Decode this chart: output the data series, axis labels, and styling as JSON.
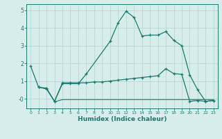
{
  "xlabel": "Humidex (Indice chaleur)",
  "xlim": [
    -0.5,
    23.5
  ],
  "ylim": [
    -0.55,
    5.35
  ],
  "yticks": [
    0,
    1,
    2,
    3,
    4,
    5
  ],
  "ytick_labels": [
    "-0",
    "1",
    "2",
    "3",
    "4",
    "5"
  ],
  "xticks": [
    0,
    1,
    2,
    3,
    4,
    5,
    6,
    7,
    8,
    9,
    10,
    11,
    12,
    13,
    14,
    15,
    16,
    17,
    18,
    19,
    20,
    21,
    22,
    23
  ],
  "bg_color": "#d6edec",
  "grid_color": "#b8d8d4",
  "line_color": "#1a7a6e",
  "line1_x": [
    0,
    1,
    2,
    3,
    4,
    5,
    6,
    7,
    10,
    11,
    12,
    13,
    14,
    15,
    16,
    17,
    18,
    19,
    20,
    21,
    22,
    23
  ],
  "line1_y": [
    1.85,
    0.65,
    0.6,
    -0.15,
    0.85,
    0.85,
    0.85,
    1.4,
    3.25,
    4.3,
    4.95,
    4.6,
    3.55,
    3.6,
    3.6,
    3.8,
    3.3,
    3.0,
    1.35,
    0.5,
    -0.15,
    -0.1
  ],
  "line2_x": [
    1,
    2,
    3,
    4,
    5,
    6,
    7,
    8,
    9,
    10,
    11,
    12,
    13,
    14,
    15,
    16,
    17,
    18,
    19,
    20,
    21,
    22,
    23
  ],
  "line2_y": [
    0.65,
    0.55,
    -0.15,
    0.9,
    0.9,
    0.9,
    0.9,
    0.95,
    0.95,
    1.0,
    1.05,
    1.1,
    1.15,
    1.2,
    1.25,
    1.3,
    1.7,
    1.42,
    1.38,
    -0.15,
    -0.1,
    -0.15,
    -0.1
  ],
  "line3_x": [
    3,
    4,
    5,
    6,
    7,
    8,
    9,
    10,
    11,
    12,
    13,
    14,
    15,
    16,
    17,
    18,
    19,
    20,
    21,
    22,
    23
  ],
  "line3_y": [
    -0.18,
    -0.05,
    -0.05,
    -0.05,
    -0.05,
    -0.05,
    -0.05,
    -0.05,
    -0.05,
    -0.05,
    -0.05,
    -0.05,
    -0.05,
    -0.05,
    -0.05,
    -0.05,
    -0.05,
    -0.05,
    -0.05,
    -0.05,
    -0.05
  ]
}
